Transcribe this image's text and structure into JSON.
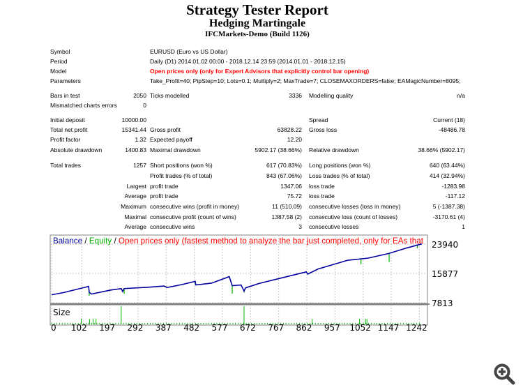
{
  "header": {
    "title": "Strategy Tester Report",
    "subtitle": "Hedging Martingale",
    "build": "IFCMarkets-Demo (Build 1126)"
  },
  "info": [
    {
      "label": "Symbol",
      "value": "EURUSD (Euro vs US Dollar)"
    },
    {
      "label": "Period",
      "value": "Daily (D1) 2014.01.02 00:00 - 2018.12.14 23:59 (2014.01.01 - 2018.12.15)"
    },
    {
      "label": "Model",
      "value": "Open prices only (only for Expert Advisors that explicitly control bar opening)"
    },
    {
      "label": "Parameters",
      "value": "Take_Profit=40; PipStep=10; Lots=0.1; Multiply=2; MaxTrade=7; CLOSEMAXORDERS=false; EAMagicNumber=8095;"
    }
  ],
  "stats": [
    {
      "l1": "Bars in test",
      "v1": "2050",
      "l2": "Ticks modelled",
      "v2": "3336",
      "l3": "Modelling quality",
      "v3": "n/a"
    },
    {
      "l1": "Mismatched charts errors",
      "v1": "0",
      "l2": "",
      "v2": "",
      "l3": "",
      "v3": ""
    },
    {
      "l1": "Initial deposit",
      "v1": "10000.00",
      "l2": "",
      "v2": "",
      "l3": "Spread",
      "v3": "Current (18)"
    },
    {
      "l1": "Total net profit",
      "v1": "15341.44",
      "l2": "Gross profit",
      "v2": "63828.22",
      "l3": "Gross loss",
      "v3": "-48486.78"
    },
    {
      "l1": "Profit factor",
      "v1": "1.32",
      "l2": "Expected payoff",
      "v2": "12.20",
      "l3": "",
      "v3": ""
    },
    {
      "l1": "Absolute drawdown",
      "v1": "1400.83",
      "l2": "Maximal drawdown",
      "v2": "5902.17 (38.66%)",
      "l3": "Relative drawdown",
      "v3": "38.66% (5902.17)"
    },
    {
      "l1": "Total trades",
      "v1": "1257",
      "l2": "Short positions (won %)",
      "v2": "617 (70.83%)",
      "l3": "Long positions (won %)",
      "v3": "640 (63.44%)"
    },
    {
      "l1": "",
      "v1": "",
      "l2": "Profit trades (% of total)",
      "v2": "843 (67.06%)",
      "l3": "Loss trades (% of total)",
      "v3": "414 (32.94%)"
    },
    {
      "l1": "",
      "v1": "Largest",
      "l2": "profit trade",
      "v2": "1347.06",
      "l3": "loss trade",
      "v3": "-1283.98"
    },
    {
      "l1": "",
      "v1": "Average",
      "l2": "profit trade",
      "v2": "75.72",
      "l3": "loss trade",
      "v3": "-117.12"
    },
    {
      "l1": "",
      "v1": "Maximum",
      "l2": "consecutive wins (profit in money)",
      "v2": "11 (510.09)",
      "l3": "consecutive losses (loss in money)",
      "v3": "5 (-1387.38)"
    },
    {
      "l1": "",
      "v1": "Maximal",
      "l2": "consecutive profit (count of wins)",
      "v2": "1387.58 (2)",
      "l3": "consecutive loss (count of losses)",
      "v3": "-3170.61 (4)"
    },
    {
      "l1": "",
      "v1": "Average",
      "l2": "consecutive wins",
      "v2": "3",
      "l3": "consecutive losses",
      "v3": "1"
    }
  ],
  "chart_data": {
    "type": "line",
    "legend": {
      "balance": "Balance",
      "equity": "Equity",
      "sep": " / ",
      "model": "Open prices only (fastest method to analyze the bar just completed, only for EAs that"
    },
    "colors": {
      "balance": "#0000a0",
      "equity": "#00b000",
      "model": "#ff0000",
      "grid": "#c8c8c8"
    },
    "size_label": "Size",
    "xlim": [
      0,
      1260
    ],
    "ylim": [
      7813,
      23940
    ],
    "yticks": [
      "23940",
      "15877",
      "7813"
    ],
    "xticks": [
      0,
      102,
      197,
      292,
      387,
      482,
      577,
      672,
      767,
      862,
      957,
      1052,
      1147,
      1242
    ],
    "balance": [
      [
        0,
        10000
      ],
      [
        40,
        10600
      ],
      [
        100,
        11800
      ],
      [
        125,
        12300
      ],
      [
        127,
        10700
      ],
      [
        135,
        10200
      ],
      [
        200,
        11300
      ],
      [
        235,
        11700
      ],
      [
        240,
        10900
      ],
      [
        245,
        11700
      ],
      [
        330,
        12100
      ],
      [
        380,
        12400
      ],
      [
        390,
        12000
      ],
      [
        440,
        12800
      ],
      [
        485,
        13700
      ],
      [
        487,
        12700
      ],
      [
        540,
        13200
      ],
      [
        600,
        15000
      ],
      [
        610,
        12500
      ],
      [
        640,
        12700
      ],
      [
        650,
        11000
      ],
      [
        655,
        11900
      ],
      [
        700,
        13100
      ],
      [
        760,
        14300
      ],
      [
        860,
        16300
      ],
      [
        865,
        15700
      ],
      [
        900,
        17100
      ],
      [
        1000,
        19500
      ],
      [
        1070,
        20100
      ],
      [
        1140,
        21400
      ],
      [
        1200,
        22900
      ],
      [
        1250,
        24000
      ]
    ],
    "equity_dips": [
      [
        127,
        9700
      ],
      [
        245,
        10300
      ],
      [
        485,
        12800
      ],
      [
        610,
        10300
      ],
      [
        650,
        10600
      ],
      [
        1045,
        18400
      ],
      [
        1140,
        19000
      ],
      [
        1235,
        22800
      ]
    ],
    "size_spikes": [
      [
        100,
        0.3
      ],
      [
        128,
        0.3
      ],
      [
        140,
        0.3
      ],
      [
        150,
        0.3
      ],
      [
        235,
        1
      ],
      [
        650,
        1
      ],
      [
        880,
        0.3
      ],
      [
        1040,
        0.3
      ],
      [
        1060,
        0.3
      ],
      [
        1065,
        0.3
      ]
    ]
  },
  "icons": {
    "zoom": "zoom-in-icon"
  }
}
